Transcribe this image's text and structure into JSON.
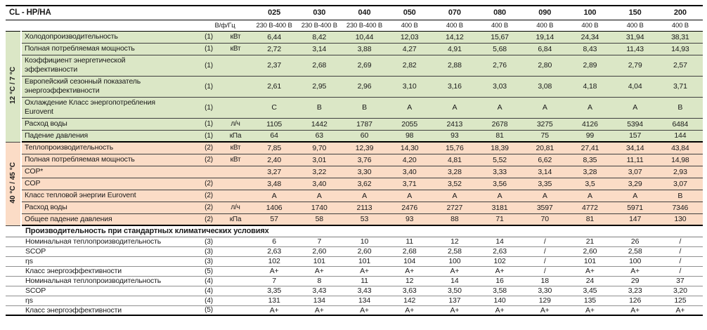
{
  "title": "CL - HP/HA",
  "colors": {
    "cooling_bg": "#dbe7c6",
    "heating_bg": "#fbdcc6"
  },
  "header": {
    "models": [
      "025",
      "030",
      "040",
      "050",
      "070",
      "080",
      "090",
      "100",
      "150",
      "200"
    ],
    "voltage_label": "В/ф/Гц",
    "voltages": [
      "230 В-400 В",
      "230 В-400 В",
      "230 В-400 В",
      "400 В",
      "400 В",
      "400 В",
      "400 В",
      "400 В",
      "400 В",
      "400 В"
    ]
  },
  "sections": [
    {
      "id": "cooling",
      "side_label": "12 °C / 7 °C",
      "rows": [
        {
          "label": "Холодопроизводительность",
          "ref": "(1)",
          "unit": "кВт",
          "values": [
            "6,44",
            "8,42",
            "10,44",
            "12,03",
            "14,12",
            "15,67",
            "19,14",
            "24,34",
            "31,94",
            "38,31"
          ]
        },
        {
          "label": "Полная потребляемая мощность",
          "ref": "(1)",
          "unit": "кВт",
          "values": [
            "2,72",
            "3,14",
            "3,88",
            "4,27",
            "4,91",
            "5,68",
            "6,84",
            "8,43",
            "11,43",
            "14,93"
          ]
        },
        {
          "label": "Коэффициент энергетической эффективности",
          "ref": "(1)",
          "unit": "",
          "two_line": true,
          "values": [
            "2,37",
            "2,68",
            "2,69",
            "2,82",
            "2,88",
            "2,76",
            "2,80",
            "2,89",
            "2,79",
            "2,57"
          ]
        },
        {
          "label": "Европейский сезонный показатель энергоэффективности",
          "ref": "(1)",
          "unit": "",
          "two_line": true,
          "values": [
            "2,61",
            "2,95",
            "2,96",
            "3,10",
            "3,16",
            "3,03",
            "3,08",
            "4,18",
            "4,04",
            "3,71"
          ]
        },
        {
          "label": "Охлаждение Класс энергопотребления Eurovent",
          "ref": "(1)",
          "unit": "",
          "two_line": true,
          "values": [
            "C",
            "B",
            "B",
            "A",
            "A",
            "A",
            "A",
            "A",
            "A",
            "B"
          ]
        },
        {
          "label": "Расход воды",
          "ref": "(1)",
          "unit": "л/ч",
          "values": [
            "1105",
            "1442",
            "1787",
            "2055",
            "2413",
            "2678",
            "3275",
            "4126",
            "5394",
            "6484"
          ]
        },
        {
          "label": "Падение давления",
          "ref": "(1)",
          "unit": "кПа",
          "values": [
            "64",
            "63",
            "60",
            "98",
            "93",
            "81",
            "75",
            "99",
            "157",
            "144"
          ]
        }
      ]
    },
    {
      "id": "heating",
      "side_label": "40 °C / 45 °C",
      "rows": [
        {
          "label": "Теплопроизводительность",
          "ref": "(2)",
          "unit": "кВт",
          "values": [
            "7,85",
            "9,70",
            "12,39",
            "14,30",
            "15,76",
            "18,39",
            "20,81",
            "27,41",
            "34,14",
            "43,84"
          ]
        },
        {
          "label": "Полная потребляемая мощность",
          "ref": "(2)",
          "unit": "кВт",
          "values": [
            "2,40",
            "3,01",
            "3,76",
            "4,20",
            "4,81",
            "5,52",
            "6,62",
            "8,35",
            "11,11",
            "14,98"
          ]
        },
        {
          "label": "COP*",
          "ref": "",
          "unit": "",
          "values": [
            "3,27",
            "3,22",
            "3,30",
            "3,40",
            "3,28",
            "3,33",
            "3,14",
            "3,28",
            "3,07",
            "2,93"
          ]
        },
        {
          "label": "COP",
          "ref": "(2)",
          "unit": "",
          "values": [
            "3,48",
            "3,40",
            "3,62",
            "3,71",
            "3,52",
            "3,56",
            "3,35",
            "3,5",
            "3,29",
            "3,07"
          ]
        },
        {
          "label": "Класс тепловой энергии Eurovent",
          "ref": "(2)",
          "unit": "",
          "values": [
            "A",
            "A",
            "A",
            "A",
            "A",
            "A",
            "A",
            "A",
            "A",
            "B"
          ]
        },
        {
          "label": "Расход воды",
          "ref": "(2)",
          "unit": "л/ч",
          "values": [
            "1406",
            "1740",
            "2113",
            "2476",
            "2727",
            "3181",
            "3597",
            "4772",
            "5971",
            "7346"
          ]
        },
        {
          "label": "Общее падение давления",
          "ref": "(2)",
          "unit": "кПа",
          "values": [
            "57",
            "58",
            "53",
            "93",
            "88",
            "71",
            "70",
            "81",
            "147",
            "130"
          ]
        }
      ]
    },
    {
      "id": "standard",
      "heading": "Производительность при стандартных климатических условиях",
      "rows": [
        {
          "label": "Номинальная теплопроизводительность",
          "ref": "(3)",
          "unit": "",
          "values": [
            "6",
            "7",
            "10",
            "11",
            "12",
            "14",
            "/",
            "21",
            "26",
            "/"
          ]
        },
        {
          "label": "SCOP",
          "ref": "(3)",
          "unit": "",
          "values": [
            "2,63",
            "2,60",
            "2,60",
            "2,68",
            "2,58",
            "2,63",
            "/",
            "2,60",
            "2,58",
            "/"
          ]
        },
        {
          "label": "ηs",
          "ref": "(3)",
          "unit": "",
          "values": [
            "102",
            "101",
            "101",
            "104",
            "100",
            "102",
            "/",
            "101",
            "100",
            "/"
          ]
        },
        {
          "label": "Класс энергоэффективности",
          "ref": "(5)",
          "unit": "",
          "values": [
            "A+",
            "A+",
            "A+",
            "A+",
            "A+",
            "A+",
            "/",
            "A+",
            "A+",
            "/"
          ]
        },
        {
          "label": "Номинальная теплопроизводительность",
          "ref": "(4)",
          "unit": "",
          "values": [
            "7",
            "8",
            "11",
            "12",
            "14",
            "16",
            "18",
            "24",
            "29",
            "37"
          ]
        },
        {
          "label": "SCOP",
          "ref": "(4)",
          "unit": "",
          "values": [
            "3,35",
            "3,43",
            "3,43",
            "3,63",
            "3,50",
            "3,58",
            "3,30",
            "3,45",
            "3,23",
            "3,20"
          ]
        },
        {
          "label": "ηs",
          "ref": "(4)",
          "unit": "",
          "values": [
            "131",
            "134",
            "134",
            "142",
            "137",
            "140",
            "129",
            "135",
            "126",
            "125"
          ]
        },
        {
          "label": "Класс энергоэффективности",
          "ref": "(5)",
          "unit": "",
          "values": [
            "A+",
            "A+",
            "A+",
            "A+",
            "A+",
            "A+",
            "A+",
            "A+",
            "A+",
            "A+"
          ]
        }
      ]
    }
  ]
}
